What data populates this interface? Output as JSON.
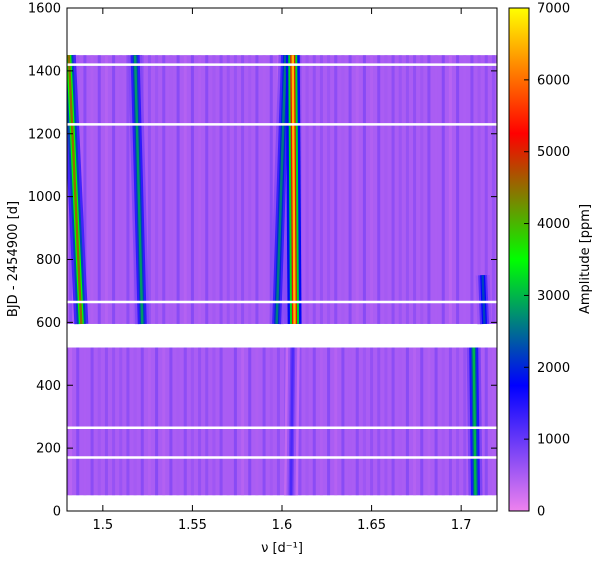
{
  "chart_data": {
    "type": "heatmap",
    "title": "",
    "xlabel": "ν [d⁻¹]",
    "ylabel": "BJD - 2454900 [d]",
    "xlim": [
      1.48,
      1.72
    ],
    "ylim": [
      0,
      1600
    ],
    "x_ticks": [
      1.5,
      1.55,
      1.6,
      1.65,
      1.7
    ],
    "x_tick_labels": [
      "1.5",
      "1.55",
      "1.6",
      "1.65",
      "1.7"
    ],
    "y_ticks": [
      0,
      200,
      400,
      600,
      800,
      1000,
      1200,
      1400,
      1600
    ],
    "y_tick_labels": [
      "0",
      "200",
      "400",
      "600",
      "800",
      "1000",
      "1200",
      "1400",
      "1600"
    ],
    "colorbar": {
      "label": "Amplitude [ppm]",
      "range": [
        0,
        7000
      ],
      "ticks": [
        0,
        1000,
        2000,
        3000,
        4000,
        5000,
        6000,
        7000
      ],
      "tick_labels": [
        "0",
        "1000",
        "2000",
        "3000",
        "4000",
        "5000",
        "6000",
        "7000"
      ],
      "colors": [
        "#ee82ee",
        "#0000ff",
        "#00ff00",
        "#ff0000",
        "#ffff00"
      ]
    },
    "data_segments": [
      {
        "y_from": 50,
        "y_to": 520
      },
      {
        "y_from": 595,
        "y_to": 1450
      }
    ],
    "gap_lines_y": [
      170,
      265,
      665,
      1230,
      1420
    ],
    "ridges": [
      {
        "y_from": 595,
        "y_to": 1450,
        "x_at_start": 1.488,
        "x_at_end": 1.481,
        "peak_amplitude": 4500
      },
      {
        "y_from": 595,
        "y_to": 1450,
        "x_at_start": 1.522,
        "x_at_end": 1.518,
        "peak_amplitude": 2800
      },
      {
        "y_from": 595,
        "y_to": 1450,
        "x_at_start": 1.597,
        "x_at_end": 1.602,
        "peak_amplitude": 2600
      },
      {
        "y_from": 595,
        "y_to": 1450,
        "x_at_start": 1.607,
        "x_at_end": 1.606,
        "peak_amplitude": 6500
      },
      {
        "y_from": 50,
        "y_to": 520,
        "x_at_start": 1.708,
        "x_at_end": 1.707,
        "peak_amplitude": 3000
      },
      {
        "y_from": 50,
        "y_to": 520,
        "x_at_start": 1.605,
        "x_at_end": 1.606,
        "peak_amplitude": 1200
      },
      {
        "y_from": 595,
        "y_to": 750,
        "x_at_start": 1.713,
        "x_at_end": 1.712,
        "peak_amplitude": 2200
      }
    ]
  }
}
